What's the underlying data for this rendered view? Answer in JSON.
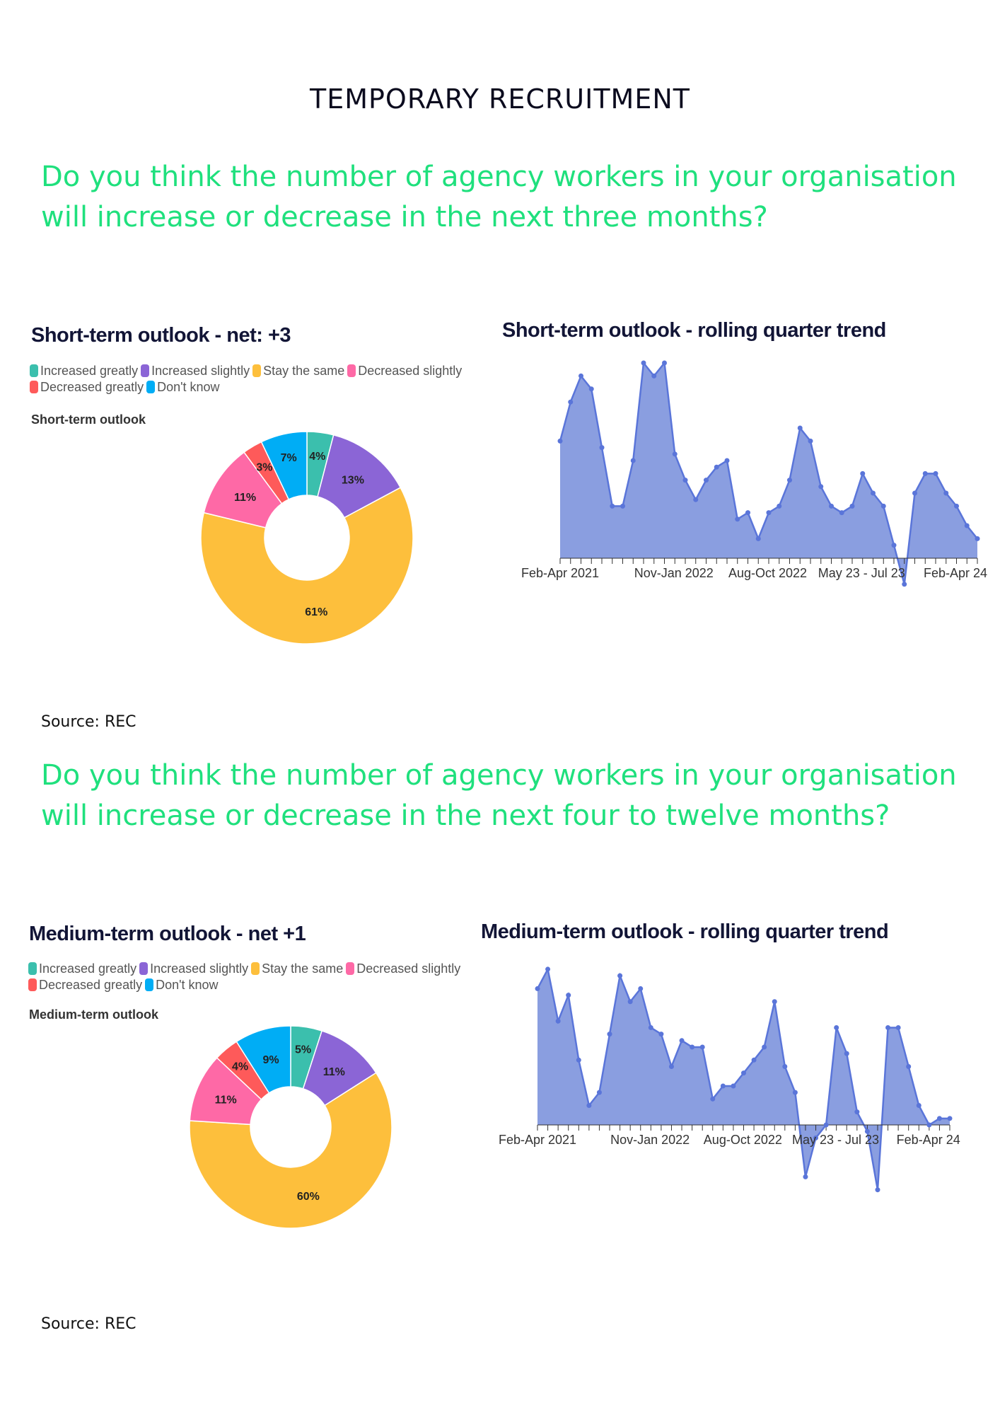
{
  "page": {
    "title": "TEMPORARY RECRUITMENT",
    "question_1": "Do you think the number of agency workers in your organisation will increase or decrease in the next three months?",
    "question_2": "Do you think the number of agency workers in your organisation will increase or decrease in the next four to twelve months?",
    "source_1": "Source: REC",
    "source_2": "Source: REC",
    "accent_color": "#1fe07d"
  },
  "legend": {
    "items": [
      {
        "label": "Increased greatly",
        "color": "#3bbfad"
      },
      {
        "label": "Increased slightly",
        "color": "#8b65d6"
      },
      {
        "label": "Stay the same",
        "color": "#fdbf3c"
      },
      {
        "label": "Decreased slightly",
        "color": "#fe69a6"
      },
      {
        "label": "Decreased greatly",
        "color": "#fe5a5a"
      },
      {
        "label": "Don't know",
        "color": "#00adf5"
      }
    ]
  },
  "chart_data": [
    {
      "type": "pie",
      "donut": true,
      "title": "Short-term outlook - net: +3",
      "subtitle": "Short-term outlook",
      "legend_position": "top-left",
      "categories": [
        "Increased greatly",
        "Increased slightly",
        "Stay the same",
        "Decreased slightly",
        "Decreased greatly",
        "Don't know"
      ],
      "values": [
        4,
        13,
        61,
        11,
        3,
        7
      ],
      "data_labels": [
        "4%",
        "13%",
        "61%",
        "11%",
        "3%",
        "7%"
      ],
      "colors": [
        "#3bbfad",
        "#8b65d6",
        "#fdbf3c",
        "#fe69a6",
        "#fe5a5a",
        "#00adf5"
      ]
    },
    {
      "type": "area",
      "title": "Short-term outlook - rolling quarter trend",
      "xlabel": "",
      "ylabel": "",
      "grid": false,
      "fill_color": "#8a9ee0",
      "line_color": "#5a75d9",
      "ylim": [
        -4,
        30
      ],
      "tick_labels": [
        {
          "label": "Feb-Apr 2021",
          "at": 0
        },
        {
          "label": "Nov-Jan 2022",
          "at": 9
        },
        {
          "label": "Aug-Oct 2022",
          "at": 18
        },
        {
          "label": "May 23 - Jul 23",
          "at": 27
        },
        {
          "label": "Feb-Apr 24",
          "at": 36
        }
      ],
      "values": [
        18,
        24,
        28,
        26,
        17,
        8,
        8,
        15,
        30,
        28,
        30,
        16,
        12,
        9,
        12,
        14,
        15,
        6,
        7,
        3,
        7,
        8,
        12,
        20,
        18,
        11,
        8,
        7,
        8,
        13,
        10,
        8,
        2,
        -4,
        10,
        13,
        13,
        10,
        8,
        5,
        3
      ]
    },
    {
      "type": "pie",
      "donut": true,
      "title": "Medium-term outlook - net +1",
      "subtitle": "Medium-term outlook",
      "legend_position": "top-left",
      "categories": [
        "Increased greatly",
        "Increased slightly",
        "Stay the same",
        "Decreased slightly",
        "Decreased greatly",
        "Don't know"
      ],
      "values": [
        5,
        11,
        60,
        11,
        4,
        9
      ],
      "data_labels": [
        "5%",
        "11%",
        "60%",
        "11%",
        "4%",
        "9%"
      ],
      "colors": [
        "#3bbfad",
        "#8b65d6",
        "#fdbf3c",
        "#fe69a6",
        "#fe5a5a",
        "#00adf5"
      ]
    },
    {
      "type": "area",
      "title": "Medium-term outlook - rolling quarter trend",
      "xlabel": "",
      "ylabel": "",
      "grid": false,
      "fill_color": "#8a9ee0",
      "line_color": "#5a75d9",
      "ylim": [
        -10,
        24
      ],
      "tick_labels": [
        {
          "label": "Feb-Apr 2021",
          "at": 0
        },
        {
          "label": "Nov-Jan 2022",
          "at": 9
        },
        {
          "label": "Aug-Oct 2022",
          "at": 18
        },
        {
          "label": "May 23 - Jul 23",
          "at": 27
        },
        {
          "label": "Feb-Apr 24",
          "at": 36
        }
      ],
      "values": [
        21,
        24,
        16,
        20,
        10,
        3,
        5,
        14,
        23,
        19,
        21,
        15,
        14,
        9,
        13,
        12,
        12,
        4,
        6,
        6,
        8,
        10,
        12,
        19,
        9,
        5,
        -8,
        -2,
        0,
        15,
        11,
        2,
        -1,
        -10,
        15,
        15,
        9,
        3,
        0,
        1,
        1
      ]
    }
  ]
}
